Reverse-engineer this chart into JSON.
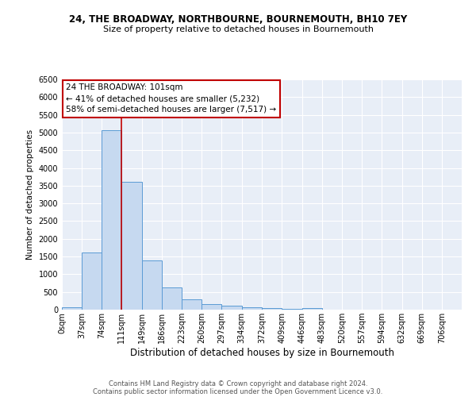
{
  "title": "24, THE BROADWAY, NORTHBOURNE, BOURNEMOUTH, BH10 7EY",
  "subtitle": "Size of property relative to detached houses in Bournemouth",
  "xlabel": "Distribution of detached houses by size in Bournemouth",
  "ylabel": "Number of detached properties",
  "footnote1": "Contains HM Land Registry data © Crown copyright and database right 2024.",
  "footnote2": "Contains public sector information licensed under the Open Government Licence v3.0.",
  "bar_edges": [
    0,
    37,
    74,
    111,
    149,
    186,
    223,
    260,
    297,
    334,
    372,
    409,
    446,
    483,
    520,
    557,
    594,
    632,
    669,
    706,
    743
  ],
  "bar_heights": [
    75,
    1620,
    5070,
    3600,
    1390,
    620,
    300,
    155,
    120,
    75,
    50,
    30,
    55,
    0,
    0,
    0,
    0,
    0,
    0,
    0
  ],
  "bar_color": "#c6d9f0",
  "bar_edge_color": "#5b9bd5",
  "vline_color": "#c00000",
  "annotation_text": "24 THE BROADWAY: 101sqm\n← 41% of detached houses are smaller (5,232)\n58% of semi-detached houses are larger (7,517) →",
  "annotation_box_color": "#ffffff",
  "annotation_box_edge": "#c00000",
  "ylim": [
    0,
    6500
  ],
  "yticks": [
    0,
    500,
    1000,
    1500,
    2000,
    2500,
    3000,
    3500,
    4000,
    4500,
    5000,
    5500,
    6000,
    6500
  ],
  "background_color": "#ffffff",
  "plot_bg_color": "#e8eef7",
  "grid_color": "#ffffff",
  "title_fontsize": 8.5,
  "subtitle_fontsize": 8.0,
  "xlabel_fontsize": 8.5,
  "ylabel_fontsize": 7.5,
  "tick_fontsize": 7.0,
  "annotation_fontsize": 7.5,
  "footnote_fontsize": 6.0
}
